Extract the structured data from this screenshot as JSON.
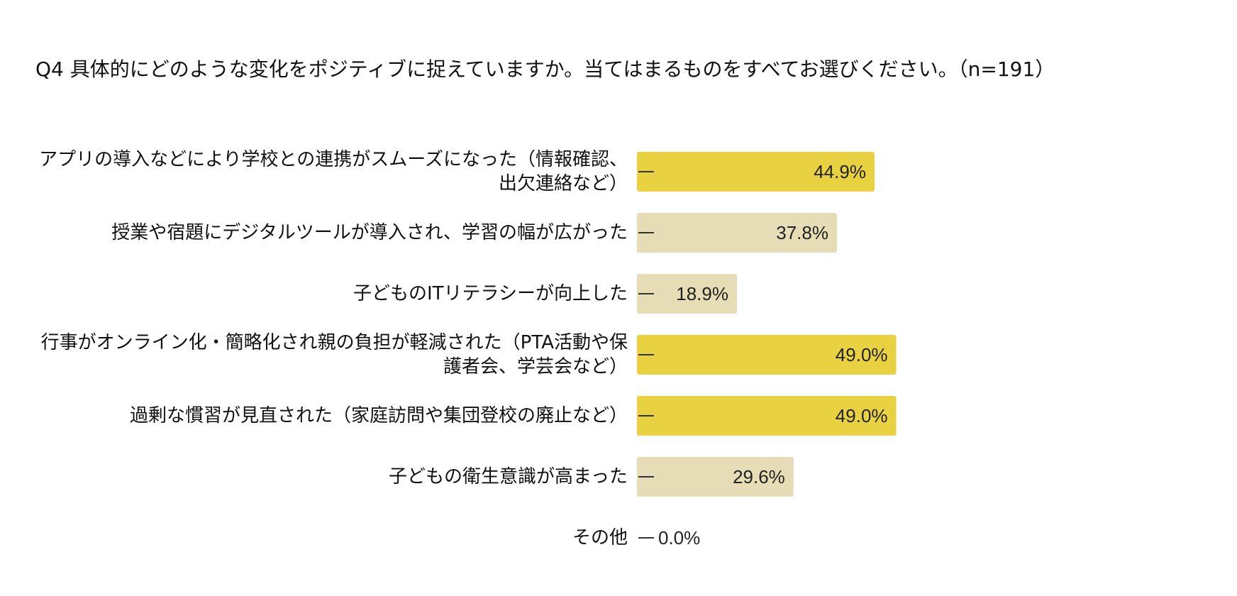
{
  "chart_data": {
    "type": "bar",
    "orientation": "horizontal",
    "title": "Q4 具体的にどのような変化をポジティブに捉えていますか。当てはまるものをすべてお選びください。（n=191）",
    "categories": [
      "アプリの導入などにより学校との連携がスムーズになった（情報確認、出欠連絡など）",
      "授業や宿題にデジタルツールが導入され、学習の幅が広がった",
      "子どものITリテラシーが向上した",
      "行事がオンライン化・簡略化され親の負担が軽減された（PTA活動や保護者会、学芸会など）",
      "過剰な慣習が見直された（家庭訪問や集団登校の廃止など）",
      "子どもの衛生意識が高まった",
      "その他"
    ],
    "values": [
      44.9,
      37.8,
      18.9,
      49.0,
      49.0,
      29.6,
      0.0
    ],
    "value_labels": [
      "44.9%",
      "37.8%",
      "18.9%",
      "49.0%",
      "49.0%",
      "29.6%",
      "0.0%"
    ],
    "highlight": [
      true,
      false,
      false,
      true,
      true,
      false,
      false
    ],
    "colors": {
      "highlight": "#e8d242",
      "normal": "#e6dcb5",
      "tick": "#333333"
    },
    "xlim": [
      0,
      100
    ],
    "grid": false,
    "legend": "none"
  }
}
